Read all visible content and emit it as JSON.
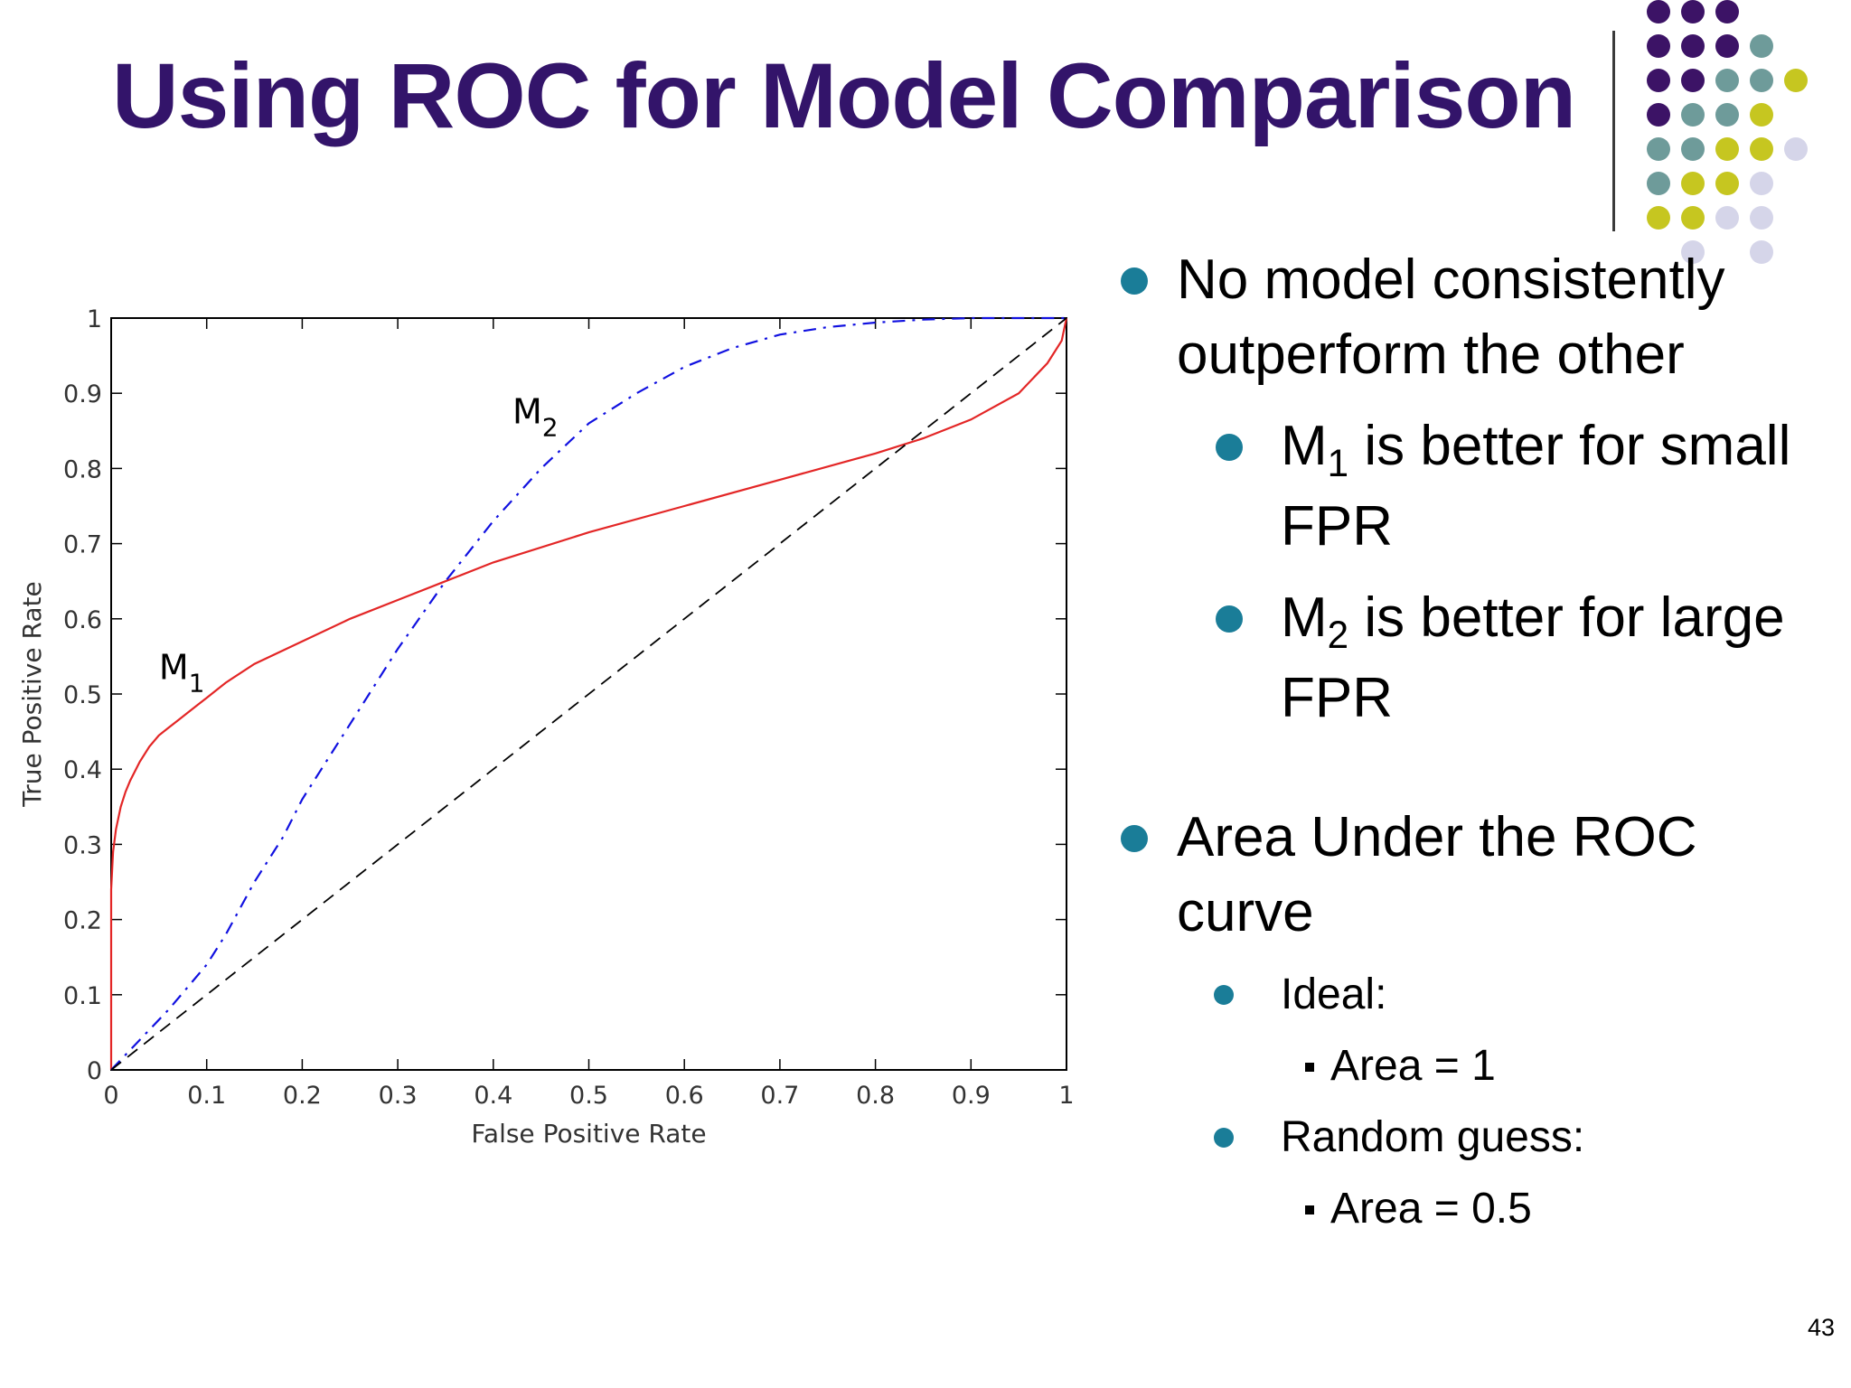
{
  "slide": {
    "title": "Using ROC for Model Comparison",
    "page_number": "43"
  },
  "colors": {
    "title": "#33146a",
    "bullet": "#1a7d98",
    "m1_curve": "#e32626",
    "m2_curve": "#1010e0",
    "random_line": "#000000"
  },
  "decor": {
    "dot_palette": [
      "#3c1366",
      "#6e9b9a",
      "#c6c620",
      "#d5d5e9"
    ],
    "dot_grid": [
      [
        0,
        0,
        0,
        -1,
        -1
      ],
      [
        0,
        0,
        0,
        1,
        -1
      ],
      [
        0,
        0,
        1,
        1,
        2
      ],
      [
        0,
        1,
        1,
        2,
        -1
      ],
      [
        1,
        1,
        2,
        2,
        3
      ],
      [
        1,
        2,
        2,
        3,
        -1
      ],
      [
        2,
        2,
        3,
        3,
        -1
      ],
      [
        -1,
        3,
        -1,
        3,
        -1
      ]
    ]
  },
  "bullets": [
    {
      "text": "No model consistently outperform the other"
    },
    {
      "pre": "M",
      "sub": "1",
      "post": " is better for small FPR"
    },
    {
      "pre": "M",
      "sub": "2",
      "post": " is better for large FPR"
    },
    {
      "text": "Area Under the ROC curve"
    },
    {
      "text": "Ideal:"
    },
    {
      "text": "Area = 1"
    },
    {
      "text": "Random guess:"
    },
    {
      "text": "Area = 0.5"
    }
  ],
  "chart_data": {
    "type": "line",
    "title": "",
    "xlabel": "False Positive Rate",
    "ylabel": "True Positive Rate",
    "xlim": [
      0,
      1
    ],
    "ylim": [
      0,
      1
    ],
    "xticks": [
      "0",
      "0.1",
      "0.2",
      "0.3",
      "0.4",
      "0.5",
      "0.6",
      "0.7",
      "0.8",
      "0.9",
      "1"
    ],
    "yticks": [
      "0",
      "0.1",
      "0.2",
      "0.3",
      "0.4",
      "0.5",
      "0.6",
      "0.7",
      "0.8",
      "0.9",
      "1"
    ],
    "grid": false,
    "series": [
      {
        "name": "M1",
        "label_main": "M",
        "label_sub": "1",
        "style": "solid",
        "x": [
          0,
          0,
          0.002,
          0.005,
          0.01,
          0.015,
          0.02,
          0.03,
          0.04,
          0.05,
          0.06,
          0.07,
          0.08,
          0.09,
          0.1,
          0.12,
          0.15,
          0.2,
          0.25,
          0.3,
          0.35,
          0.4,
          0.5,
          0.6,
          0.7,
          0.8,
          0.85,
          0.9,
          0.95,
          0.98,
          0.995,
          1
        ],
        "y": [
          0,
          0.24,
          0.29,
          0.32,
          0.35,
          0.37,
          0.385,
          0.41,
          0.43,
          0.445,
          0.455,
          0.465,
          0.475,
          0.485,
          0.495,
          0.515,
          0.54,
          0.57,
          0.6,
          0.625,
          0.65,
          0.675,
          0.715,
          0.75,
          0.785,
          0.82,
          0.84,
          0.865,
          0.9,
          0.94,
          0.97,
          1.0
        ]
      },
      {
        "name": "M2",
        "label_main": "M",
        "label_sub": "2",
        "style": "dashdot",
        "x": [
          0,
          0.03,
          0.06,
          0.08,
          0.1,
          0.12,
          0.15,
          0.18,
          0.2,
          0.25,
          0.3,
          0.35,
          0.4,
          0.45,
          0.5,
          0.55,
          0.6,
          0.65,
          0.7,
          0.75,
          0.8,
          0.85,
          0.9,
          1
        ],
        "y": [
          0,
          0.04,
          0.08,
          0.11,
          0.14,
          0.18,
          0.25,
          0.31,
          0.36,
          0.46,
          0.56,
          0.65,
          0.73,
          0.8,
          0.86,
          0.9,
          0.935,
          0.96,
          0.978,
          0.988,
          0.994,
          0.998,
          1.0,
          1.0
        ]
      },
      {
        "name": "Random",
        "style": "dashed",
        "x": [
          0,
          1
        ],
        "y": [
          0,
          1
        ]
      }
    ],
    "annotations": [
      {
        "series": "M1",
        "at": [
          0.05,
          0.52
        ]
      },
      {
        "series": "M2",
        "at": [
          0.42,
          0.86
        ]
      }
    ]
  }
}
